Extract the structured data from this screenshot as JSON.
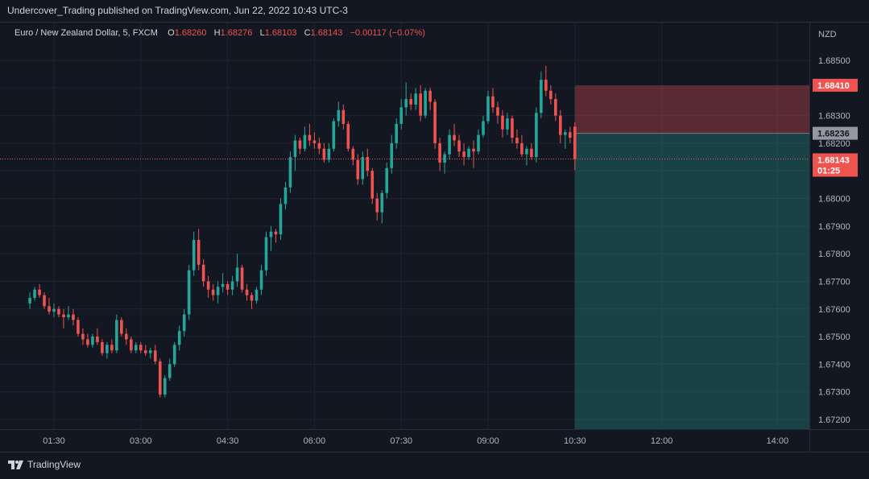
{
  "publish_caption": "Undercover_Trading published on TradingView.com, Jun 22, 2022 10:43 UTC-3",
  "legend": {
    "symbol": "Euro / New Zealand Dollar, 5, FXCM",
    "o_label": "O",
    "o": "1.68260",
    "h_label": "H",
    "h": "1.68276",
    "l_label": "L",
    "l": "1.68103",
    "c_label": "C",
    "c": "1.68143",
    "change": "−0.00117 (−0.07%)"
  },
  "brand": "TradingView",
  "colors": {
    "up": "#26a69a",
    "down": "#ef5350",
    "background": "#131722",
    "grid": "#1f2430"
  },
  "chart_data": {
    "type": "candlestick",
    "currency": "NZD",
    "ylim": [
      1.6716,
      1.6858
    ],
    "y_ticks": [
      "1.67200",
      "1.67300",
      "1.67400",
      "1.67500",
      "1.67600",
      "1.67700",
      "1.67800",
      "1.67900",
      "1.68000",
      "1.68100",
      "1.68200",
      "1.68300",
      "1.68400",
      "1.68500"
    ],
    "x_ticks": [
      {
        "label": "01:30",
        "time": "01:30"
      },
      {
        "label": "03:00",
        "time": "03:00"
      },
      {
        "label": "04:30",
        "time": "04:30"
      },
      {
        "label": "06:00",
        "time": "06:00"
      },
      {
        "label": "07:30",
        "time": "07:30"
      },
      {
        "label": "09:00",
        "time": "09:00"
      },
      {
        "label": "10:30",
        "time": "10:30"
      },
      {
        "label": "12:00",
        "time": "12:00"
      },
      {
        "label": "14:00",
        "time": "14:00"
      }
    ],
    "x_range": [
      "01:01",
      "14:25"
    ],
    "bar_minutes": 5,
    "candles_start": "01:05",
    "candles": [
      [
        1.6762,
        1.6766,
        1.676,
        1.6764
      ],
      [
        1.6764,
        1.6768,
        1.6763,
        1.6767
      ],
      [
        1.6767,
        1.6769,
        1.6764,
        1.6765
      ],
      [
        1.6765,
        1.6766,
        1.676,
        1.6761
      ],
      [
        1.6761,
        1.6764,
        1.6758,
        1.6759
      ],
      [
        1.6759,
        1.6762,
        1.6757,
        1.676
      ],
      [
        1.676,
        1.6761,
        1.6757,
        1.6758
      ],
      [
        1.6758,
        1.676,
        1.6753,
        1.6757
      ],
      [
        1.6757,
        1.6761,
        1.6756,
        1.6758
      ],
      [
        1.6758,
        1.676,
        1.6754,
        1.6756
      ],
      [
        1.6756,
        1.6757,
        1.675,
        1.6751
      ],
      [
        1.6751,
        1.6753,
        1.6747,
        1.6749
      ],
      [
        1.6749,
        1.6751,
        1.6746,
        1.6747
      ],
      [
        1.6747,
        1.6751,
        1.6746,
        1.675
      ],
      [
        1.675,
        1.6753,
        1.6747,
        1.6748
      ],
      [
        1.6748,
        1.6749,
        1.6743,
        1.6744
      ],
      [
        1.6744,
        1.6748,
        1.6742,
        1.6747
      ],
      [
        1.6747,
        1.6749,
        1.6744,
        1.6745
      ],
      [
        1.6745,
        1.6758,
        1.6744,
        1.6756
      ],
      [
        1.6756,
        1.6757,
        1.675,
        1.6751
      ],
      [
        1.6751,
        1.6753,
        1.6747,
        1.6749
      ],
      [
        1.6749,
        1.675,
        1.6744,
        1.6745
      ],
      [
        1.6745,
        1.6748,
        1.6744,
        1.6747
      ],
      [
        1.6747,
        1.6748,
        1.6744,
        1.6745
      ],
      [
        1.6745,
        1.6747,
        1.6743,
        1.6744
      ],
      [
        1.6744,
        1.6746,
        1.6742,
        1.6745
      ],
      [
        1.6745,
        1.6747,
        1.674,
        1.6741
      ],
      [
        1.6741,
        1.6742,
        1.6728,
        1.6729
      ],
      [
        1.6729,
        1.6736,
        1.6728,
        1.6735
      ],
      [
        1.6735,
        1.6742,
        1.6734,
        1.674
      ],
      [
        1.674,
        1.6748,
        1.6739,
        1.6747
      ],
      [
        1.6747,
        1.6754,
        1.6745,
        1.6752
      ],
      [
        1.6752,
        1.676,
        1.675,
        1.6758
      ],
      [
        1.6758,
        1.6776,
        1.6756,
        1.6774
      ],
      [
        1.6774,
        1.6788,
        1.6772,
        1.6785
      ],
      [
        1.6785,
        1.6789,
        1.6774,
        1.6776
      ],
      [
        1.6776,
        1.6778,
        1.6768,
        1.677
      ],
      [
        1.677,
        1.6772,
        1.6764,
        1.6767
      ],
      [
        1.6767,
        1.6769,
        1.6763,
        1.6765
      ],
      [
        1.6765,
        1.677,
        1.6762,
        1.6768
      ],
      [
        1.6768,
        1.6773,
        1.6766,
        1.6769
      ],
      [
        1.6769,
        1.677,
        1.6765,
        1.6767
      ],
      [
        1.6767,
        1.6772,
        1.6765,
        1.677
      ],
      [
        1.677,
        1.678,
        1.6768,
        1.6775
      ],
      [
        1.6775,
        1.6776,
        1.6766,
        1.6767
      ],
      [
        1.6767,
        1.6769,
        1.6763,
        1.6765
      ],
      [
        1.6765,
        1.6766,
        1.676,
        1.6763
      ],
      [
        1.6763,
        1.6768,
        1.6762,
        1.6767
      ],
      [
        1.6767,
        1.6776,
        1.6765,
        1.6774
      ],
      [
        1.6774,
        1.6788,
        1.6772,
        1.6786
      ],
      [
        1.6786,
        1.679,
        1.6781,
        1.6788
      ],
      [
        1.6788,
        1.6789,
        1.6784,
        1.6787
      ],
      [
        1.6787,
        1.68,
        1.6785,
        1.6798
      ],
      [
        1.6798,
        1.6806,
        1.6796,
        1.6804
      ],
      [
        1.6804,
        1.6817,
        1.6802,
        1.6815
      ],
      [
        1.6815,
        1.6823,
        1.681,
        1.6821
      ],
      [
        1.6821,
        1.6822,
        1.6816,
        1.6818
      ],
      [
        1.6818,
        1.6826,
        1.6817,
        1.6823
      ],
      [
        1.6823,
        1.6827,
        1.6819,
        1.6821
      ],
      [
        1.6821,
        1.6824,
        1.6818,
        1.682
      ],
      [
        1.682,
        1.6822,
        1.6816,
        1.6818
      ],
      [
        1.6818,
        1.682,
        1.6813,
        1.6814
      ],
      [
        1.6814,
        1.682,
        1.6813,
        1.6818
      ],
      [
        1.6818,
        1.6829,
        1.6817,
        1.6828
      ],
      [
        1.6828,
        1.6835,
        1.6826,
        1.6832
      ],
      [
        1.6832,
        1.6834,
        1.6825,
        1.6827
      ],
      [
        1.6827,
        1.6828,
        1.6817,
        1.6818
      ],
      [
        1.6818,
        1.6819,
        1.6812,
        1.6814
      ],
      [
        1.6814,
        1.6816,
        1.6805,
        1.6807
      ],
      [
        1.6807,
        1.6817,
        1.6805,
        1.6815
      ],
      [
        1.6815,
        1.6818,
        1.6808,
        1.681
      ],
      [
        1.681,
        1.6811,
        1.6798,
        1.68
      ],
      [
        1.68,
        1.6802,
        1.6792,
        1.6795
      ],
      [
        1.6795,
        1.6803,
        1.6791,
        1.6802
      ],
      [
        1.6802,
        1.6813,
        1.68,
        1.6811
      ],
      [
        1.6811,
        1.6823,
        1.6809,
        1.682
      ],
      [
        1.682,
        1.6829,
        1.6818,
        1.6827
      ],
      [
        1.6827,
        1.6836,
        1.6825,
        1.6833
      ],
      [
        1.6833,
        1.6842,
        1.683,
        1.6836
      ],
      [
        1.6836,
        1.6838,
        1.6832,
        1.6834
      ],
      [
        1.6834,
        1.684,
        1.6832,
        1.6838
      ],
      [
        1.6838,
        1.6841,
        1.6828,
        1.683
      ],
      [
        1.683,
        1.684,
        1.6829,
        1.6839
      ],
      [
        1.6839,
        1.684,
        1.6832,
        1.6835
      ],
      [
        1.6835,
        1.6836,
        1.6818,
        1.682
      ],
      [
        1.682,
        1.6822,
        1.681,
        1.6813
      ],
      [
        1.6813,
        1.6817,
        1.6809,
        1.6816
      ],
      [
        1.6816,
        1.6825,
        1.6814,
        1.6823
      ],
      [
        1.6823,
        1.6827,
        1.6819,
        1.6821
      ],
      [
        1.6821,
        1.6823,
        1.6815,
        1.6817
      ],
      [
        1.6817,
        1.682,
        1.6812,
        1.6815
      ],
      [
        1.6815,
        1.6819,
        1.6814,
        1.6818
      ],
      [
        1.6818,
        1.6821,
        1.6811,
        1.6817
      ],
      [
        1.6817,
        1.6825,
        1.6816,
        1.6823
      ],
      [
        1.6823,
        1.683,
        1.6822,
        1.6828
      ],
      [
        1.6828,
        1.6839,
        1.6827,
        1.6837
      ],
      [
        1.6837,
        1.684,
        1.6831,
        1.6833
      ],
      [
        1.6833,
        1.6835,
        1.6827,
        1.683
      ],
      [
        1.683,
        1.6832,
        1.6822,
        1.6825
      ],
      [
        1.6825,
        1.6831,
        1.6823,
        1.6829
      ],
      [
        1.6829,
        1.683,
        1.682,
        1.6822
      ],
      [
        1.6822,
        1.6825,
        1.6818,
        1.682
      ],
      [
        1.682,
        1.6823,
        1.6815,
        1.6816
      ],
      [
        1.6816,
        1.6819,
        1.6812,
        1.6818
      ],
      [
        1.6818,
        1.682,
        1.6814,
        1.6815
      ],
      [
        1.6815,
        1.6833,
        1.6813,
        1.6831
      ],
      [
        1.6831,
        1.6846,
        1.6829,
        1.6843
      ],
      [
        1.6843,
        1.6848,
        1.6837,
        1.6839
      ],
      [
        1.6839,
        1.6841,
        1.6834,
        1.6836
      ],
      [
        1.6836,
        1.6838,
        1.6828,
        1.683
      ],
      [
        1.683,
        1.6832,
        1.682,
        1.6823
      ],
      [
        1.6823,
        1.6825,
        1.6818,
        1.6824
      ],
      [
        1.6824,
        1.6826,
        1.682,
        1.6822
      ],
      [
        1.6826,
        1.68276,
        1.68103,
        1.68143
      ]
    ],
    "position": {
      "type": "short",
      "entry": 1.68236,
      "entry_label": "1.68236",
      "stop": 1.6841,
      "stop_label": "1.68410",
      "target": 1.6716,
      "start_time": "10:30"
    },
    "last_price": 1.68143,
    "last_price_label": "1.68143",
    "countdown": "01:25"
  }
}
